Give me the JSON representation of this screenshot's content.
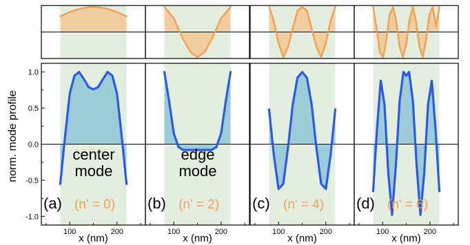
{
  "colors": {
    "top_curve": "#F0A050",
    "top_fill": "#F2CDA0",
    "bottom_curve": "#2A5BE8",
    "bottom_fill": "#9CCCD8",
    "shade": "#E3EEDF",
    "axis": "#000000",
    "label_orange": "#F0A050"
  },
  "chart_data": {
    "type": "line",
    "ylabel": "norm. mode profile",
    "xlabel": "x (nm)",
    "x_ticks": [
      "100",
      "200"
    ],
    "y_ticks": [
      "-1.0",
      "-0.5",
      "0.0",
      "0.5",
      "1.0"
    ],
    "xlim": [
      40,
      260
    ],
    "ylim": [
      -1.12,
      1.12
    ],
    "shaded_x_range": [
      80,
      220
    ],
    "panels": [
      {
        "label": "(a)",
        "index_label": "(n' = 0)",
        "annotation": [
          "center",
          "mode"
        ],
        "top_series": {
          "x": [
            80,
            100,
            120,
            140,
            150,
            160,
            180,
            200,
            220
          ],
          "y": [
            0.62,
            0.8,
            0.92,
            0.99,
            1.0,
            0.99,
            0.92,
            0.8,
            0.62
          ]
        },
        "bottom_series": {
          "x": [
            80,
            90,
            100,
            110,
            120,
            130,
            140,
            150,
            160,
            170,
            180,
            190,
            200,
            210,
            220
          ],
          "y": [
            -0.55,
            0.1,
            0.7,
            0.95,
            1.0,
            0.9,
            0.79,
            0.76,
            0.79,
            0.9,
            1.0,
            0.95,
            0.7,
            0.1,
            -0.55
          ]
        }
      },
      {
        "label": "(b)",
        "index_label": "(n' = 2)",
        "annotation": [
          "edge",
          "mode"
        ],
        "top_series": {
          "x": [
            80,
            100,
            120,
            135,
            150,
            165,
            180,
            200,
            220
          ],
          "y": [
            1.0,
            0.55,
            -0.3,
            -0.8,
            -1.0,
            -0.8,
            -0.3,
            0.55,
            1.0
          ]
        },
        "bottom_series": {
          "x": [
            80,
            90,
            100,
            110,
            120,
            130,
            140,
            150,
            160,
            170,
            180,
            190,
            200,
            210,
            220
          ],
          "y": [
            1.0,
            0.6,
            0.15,
            -0.04,
            -0.08,
            -0.08,
            -0.08,
            -0.08,
            -0.08,
            -0.08,
            -0.08,
            -0.04,
            0.15,
            0.6,
            1.0
          ]
        }
      },
      {
        "label": "(c)",
        "index_label": "(n' = 4)",
        "annotation": [],
        "top_series": {
          "x": [
            80,
            90,
            100,
            110,
            120,
            130,
            140,
            150,
            160,
            170,
            180,
            190,
            200,
            210,
            220
          ],
          "y": [
            1.0,
            0.45,
            -0.45,
            -1.0,
            -0.6,
            0.15,
            0.85,
            1.0,
            0.85,
            0.15,
            -0.6,
            -1.0,
            -0.45,
            0.45,
            1.0
          ]
        },
        "bottom_series": {
          "x": [
            80,
            90,
            100,
            110,
            120,
            130,
            140,
            150,
            160,
            170,
            180,
            190,
            200,
            210,
            220
          ],
          "y": [
            0.48,
            -0.15,
            -0.62,
            -0.55,
            -0.05,
            0.55,
            0.92,
            1.0,
            0.92,
            0.55,
            -0.05,
            -0.55,
            -0.62,
            -0.15,
            0.48
          ]
        }
      },
      {
        "label": "(d)",
        "index_label": "(n' = 6)",
        "annotation": [],
        "top_series": {
          "x": [
            80,
            87,
            94,
            101,
            108,
            115,
            122,
            129,
            136,
            143,
            150,
            157,
            164,
            171,
            178,
            185,
            192,
            199,
            206,
            213,
            220
          ],
          "y": [
            1.0,
            0.2,
            -0.8,
            -1.0,
            -0.3,
            0.7,
            1.0,
            0.4,
            -0.6,
            -1.0,
            -0.5,
            0.5,
            1.0,
            0.4,
            -0.6,
            -1.0,
            -0.3,
            0.7,
            1.0,
            0.2,
            1.0
          ]
        },
        "bottom_series": {
          "x": [
            80,
            88,
            96,
            104,
            112,
            120,
            128,
            136,
            144,
            150,
            156,
            164,
            172,
            180,
            188,
            196,
            204,
            212,
            220
          ],
          "y": [
            -0.65,
            0.2,
            0.88,
            0.55,
            -0.4,
            -0.98,
            -0.3,
            0.6,
            1.0,
            0.95,
            1.0,
            0.6,
            -0.3,
            -0.98,
            -0.4,
            0.55,
            0.88,
            0.2,
            -0.65
          ]
        }
      }
    ]
  }
}
